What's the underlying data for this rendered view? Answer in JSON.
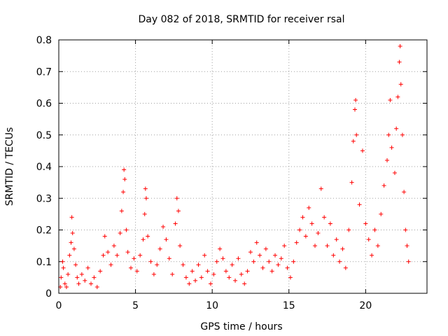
{
  "chart_data": {
    "type": "scatter",
    "title": "Day 082 of 2018, SRMTID for receiver rsal",
    "xlabel": "GPS time / hours",
    "ylabel": "SRMTID / TECUs",
    "xlim": [
      0,
      24
    ],
    "ylim": [
      0,
      0.8
    ],
    "x_ticks": [
      0,
      5,
      10,
      15,
      20
    ],
    "x_tick_labels": [
      "0",
      "5",
      "10",
      "15",
      "20"
    ],
    "y_ticks": [
      0,
      0.1,
      0.2,
      0.3,
      0.4,
      0.5,
      0.6,
      0.7,
      0.8
    ],
    "y_tick_labels": [
      "0",
      "0.1",
      "0.2",
      "0.3",
      "0.4",
      "0.5",
      "0.6",
      "0.7",
      "0.8"
    ],
    "grid": true,
    "marker": "+",
    "series": [
      {
        "name": "rsal",
        "color": "#ff0000",
        "points": [
          [
            0.1,
            0.02
          ],
          [
            0.15,
            0.05
          ],
          [
            0.25,
            0.1
          ],
          [
            0.3,
            0.08
          ],
          [
            0.4,
            0.03
          ],
          [
            0.5,
            0.02
          ],
          [
            0.6,
            0.06
          ],
          [
            0.7,
            0.12
          ],
          [
            0.8,
            0.16
          ],
          [
            0.85,
            0.24
          ],
          [
            0.9,
            0.19
          ],
          [
            1.0,
            0.14
          ],
          [
            1.1,
            0.09
          ],
          [
            1.2,
            0.05
          ],
          [
            1.3,
            0.03
          ],
          [
            1.5,
            0.06
          ],
          [
            1.7,
            0.04
          ],
          [
            1.9,
            0.08
          ],
          [
            2.1,
            0.03
          ],
          [
            2.3,
            0.05
          ],
          [
            2.5,
            0.02
          ],
          [
            2.7,
            0.07
          ],
          [
            2.9,
            0.12
          ],
          [
            3.0,
            0.18
          ],
          [
            3.2,
            0.13
          ],
          [
            3.4,
            0.09
          ],
          [
            3.6,
            0.15
          ],
          [
            3.8,
            0.12
          ],
          [
            4.0,
            0.19
          ],
          [
            4.1,
            0.26
          ],
          [
            4.2,
            0.32
          ],
          [
            4.25,
            0.39
          ],
          [
            4.3,
            0.36
          ],
          [
            4.4,
            0.2
          ],
          [
            4.5,
            0.13
          ],
          [
            4.7,
            0.08
          ],
          [
            4.9,
            0.11
          ],
          [
            5.1,
            0.07
          ],
          [
            5.3,
            0.12
          ],
          [
            5.5,
            0.17
          ],
          [
            5.6,
            0.25
          ],
          [
            5.65,
            0.33
          ],
          [
            5.7,
            0.3
          ],
          [
            5.8,
            0.18
          ],
          [
            6.0,
            0.1
          ],
          [
            6.2,
            0.06
          ],
          [
            6.4,
            0.09
          ],
          [
            6.6,
            0.14
          ],
          [
            6.8,
            0.21
          ],
          [
            7.0,
            0.17
          ],
          [
            7.2,
            0.11
          ],
          [
            7.4,
            0.06
          ],
          [
            7.6,
            0.22
          ],
          [
            7.7,
            0.3
          ],
          [
            7.8,
            0.26
          ],
          [
            7.9,
            0.15
          ],
          [
            8.1,
            0.09
          ],
          [
            8.3,
            0.05
          ],
          [
            8.5,
            0.03
          ],
          [
            8.7,
            0.07
          ],
          [
            8.9,
            0.04
          ],
          [
            9.1,
            0.09
          ],
          [
            9.3,
            0.05
          ],
          [
            9.5,
            0.12
          ],
          [
            9.7,
            0.07
          ],
          [
            9.9,
            0.03
          ],
          [
            10.1,
            0.06
          ],
          [
            10.3,
            0.1
          ],
          [
            10.5,
            0.14
          ],
          [
            10.7,
            0.11
          ],
          [
            10.9,
            0.07
          ],
          [
            11.1,
            0.05
          ],
          [
            11.3,
            0.09
          ],
          [
            11.5,
            0.04
          ],
          [
            11.7,
            0.11
          ],
          [
            11.9,
            0.06
          ],
          [
            12.1,
            0.03
          ],
          [
            12.3,
            0.07
          ],
          [
            12.5,
            0.13
          ],
          [
            12.7,
            0.1
          ],
          [
            12.9,
            0.16
          ],
          [
            13.1,
            0.12
          ],
          [
            13.3,
            0.08
          ],
          [
            13.5,
            0.14
          ],
          [
            13.7,
            0.1
          ],
          [
            13.9,
            0.07
          ],
          [
            14.1,
            0.12
          ],
          [
            14.3,
            0.09
          ],
          [
            14.5,
            0.11
          ],
          [
            14.7,
            0.15
          ],
          [
            14.9,
            0.08
          ],
          [
            15.1,
            0.05
          ],
          [
            15.3,
            0.1
          ],
          [
            15.5,
            0.16
          ],
          [
            15.7,
            0.2
          ],
          [
            15.9,
            0.24
          ],
          [
            16.1,
            0.18
          ],
          [
            16.3,
            0.27
          ],
          [
            16.5,
            0.22
          ],
          [
            16.7,
            0.15
          ],
          [
            16.9,
            0.19
          ],
          [
            17.1,
            0.33
          ],
          [
            17.3,
            0.24
          ],
          [
            17.5,
            0.15
          ],
          [
            17.7,
            0.22
          ],
          [
            17.9,
            0.12
          ],
          [
            18.1,
            0.17
          ],
          [
            18.3,
            0.1
          ],
          [
            18.5,
            0.14
          ],
          [
            18.7,
            0.08
          ],
          [
            18.9,
            0.2
          ],
          [
            19.1,
            0.35
          ],
          [
            19.2,
            0.48
          ],
          [
            19.3,
            0.58
          ],
          [
            19.35,
            0.61
          ],
          [
            19.4,
            0.5
          ],
          [
            19.6,
            0.28
          ],
          [
            19.8,
            0.45
          ],
          [
            20.0,
            0.22
          ],
          [
            20.2,
            0.17
          ],
          [
            20.4,
            0.12
          ],
          [
            20.6,
            0.2
          ],
          [
            20.8,
            0.15
          ],
          [
            21.0,
            0.25
          ],
          [
            21.2,
            0.34
          ],
          [
            21.4,
            0.42
          ],
          [
            21.5,
            0.5
          ],
          [
            21.6,
            0.61
          ],
          [
            21.7,
            0.46
          ],
          [
            21.9,
            0.38
          ],
          [
            22.0,
            0.52
          ],
          [
            22.1,
            0.62
          ],
          [
            22.2,
            0.73
          ],
          [
            22.25,
            0.78
          ],
          [
            22.3,
            0.66
          ],
          [
            22.4,
            0.5
          ],
          [
            22.5,
            0.32
          ],
          [
            22.6,
            0.2
          ],
          [
            22.7,
            0.15
          ],
          [
            22.8,
            0.1
          ]
        ]
      }
    ]
  }
}
